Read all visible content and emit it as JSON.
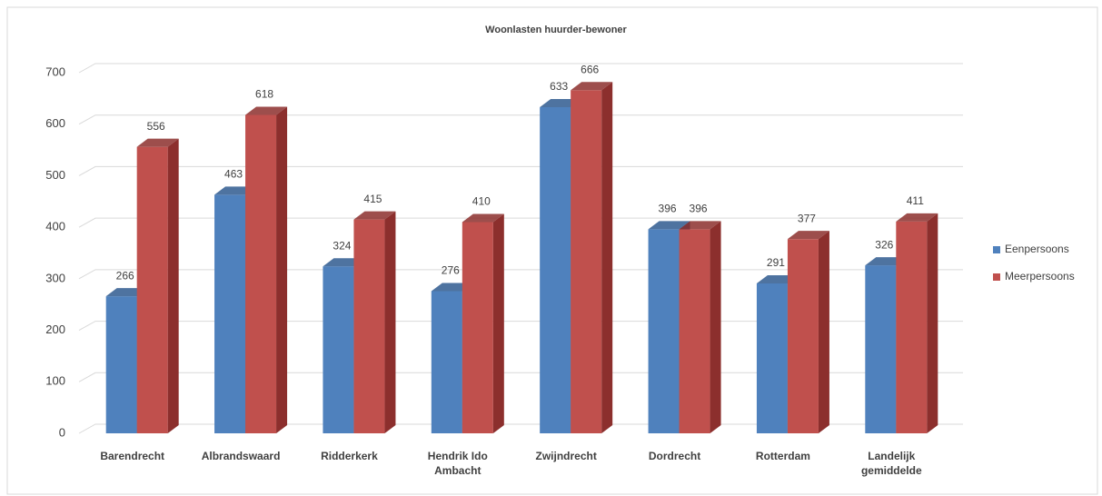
{
  "chart_data": {
    "type": "bar3d",
    "title": "Woonlasten huurder-bewoner",
    "categories": [
      "Barendrecht",
      "Albrandswaard",
      "Ridderkerk",
      "Hendrik Ido Ambacht",
      "Zwijndrecht",
      "Dordrecht",
      "Rotterdam",
      "Landelijk gemiddelde"
    ],
    "series": [
      {
        "name": "Eenpersoons",
        "color": "#4f81bd",
        "side": "#2f5b8f",
        "values": [
          266,
          463,
          324,
          276,
          633,
          396,
          291,
          326
        ]
      },
      {
        "name": "Meerpersoons",
        "color": "#c0504d",
        "side": "#8c2f2d",
        "values": [
          556,
          618,
          415,
          410,
          666,
          396,
          377,
          411
        ]
      }
    ],
    "ylim": [
      0,
      700
    ],
    "yticks": [
      0,
      100,
      200,
      300,
      400,
      500,
      600,
      700
    ],
    "grid": true,
    "legend": "right"
  }
}
